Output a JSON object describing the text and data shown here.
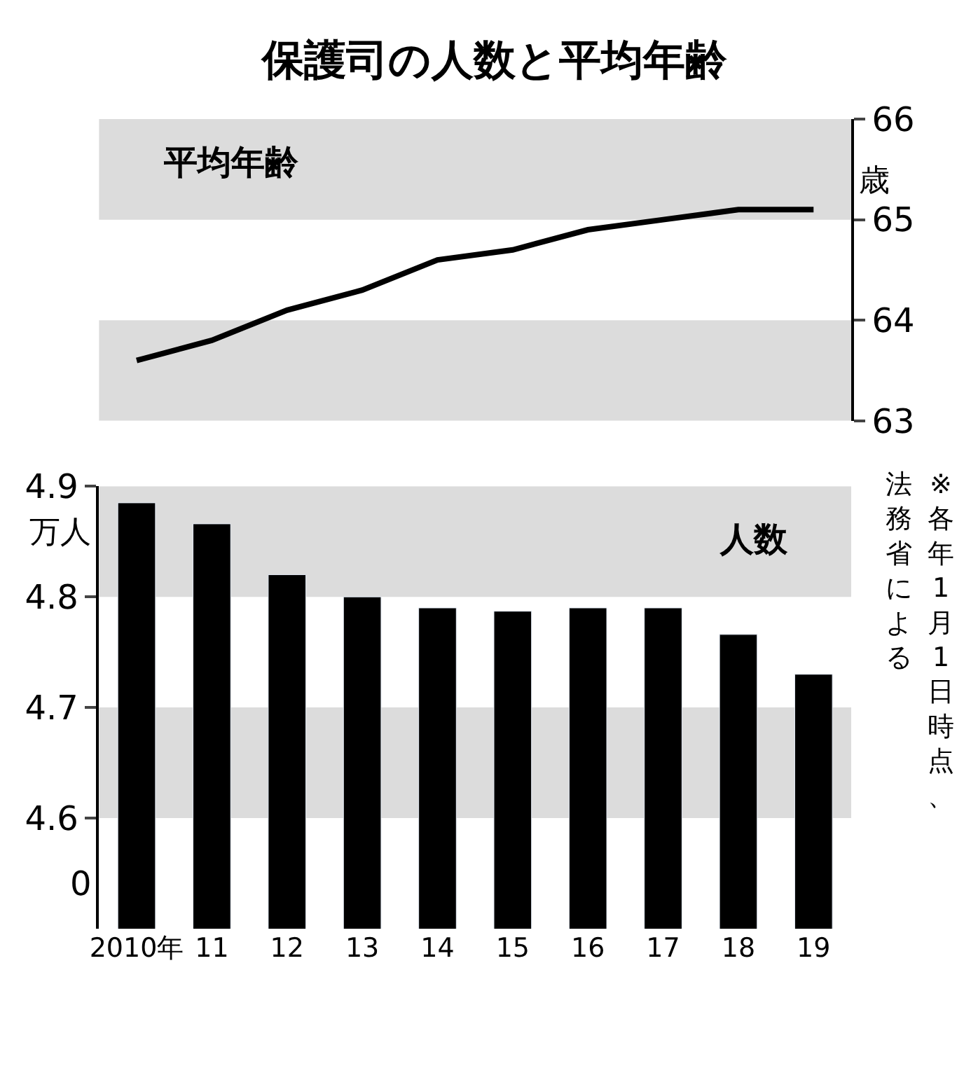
{
  "chart_data": [
    {
      "type": "line",
      "title": "保護司の人数と平均年齢",
      "categories": [
        null,
        null,
        null,
        null,
        null,
        null,
        null,
        null,
        null,
        null
      ],
      "series": [
        {
          "name": "平均年齢",
          "color": "#000000",
          "values": [
            63.6,
            63.8,
            64.1,
            64.3,
            64.6,
            64.7,
            64.9,
            65.0,
            65.1,
            65.1
          ]
        }
      ],
      "ylabel": "歳",
      "ylim": [
        63,
        66
      ],
      "yticks": [
        63,
        64,
        65,
        66
      ],
      "tick_labels": "y",
      "marker": "none",
      "line_style": "solid",
      "grid": false,
      "bands": [
        {
          "axis": "y",
          "from": 65,
          "to": 66,
          "color": "#dcdcdc"
        },
        {
          "axis": "y",
          "from": 63,
          "to": 64,
          "color": "#dcdcdc"
        }
      ]
    },
    {
      "type": "bar",
      "categories": [
        "2010年",
        "11",
        "12",
        "13",
        "14",
        "15",
        "16",
        "17",
        "18",
        "19"
      ],
      "series": [
        {
          "name": "人数",
          "color": "#000000",
          "values": [
            4.885,
            4.866,
            4.82,
            4.8,
            4.79,
            4.787,
            4.79,
            4.79,
            4.766,
            4.73
          ]
        }
      ],
      "ylabel": "万人",
      "ylim": [
        4.5,
        4.9
      ],
      "yticks": [
        4.6,
        4.7,
        4.8,
        4.9
      ],
      "grid": false,
      "bands": [
        {
          "axis": "y",
          "from": 4.8,
          "to": 4.9,
          "color": "#dcdcdc"
        },
        {
          "axis": "y",
          "from": 4.6,
          "to": 4.7,
          "color": "#dcdcdc"
        }
      ],
      "annotations": [
        "※各年1月1日時点、",
        "法務省による",
        "0"
      ]
    }
  ]
}
